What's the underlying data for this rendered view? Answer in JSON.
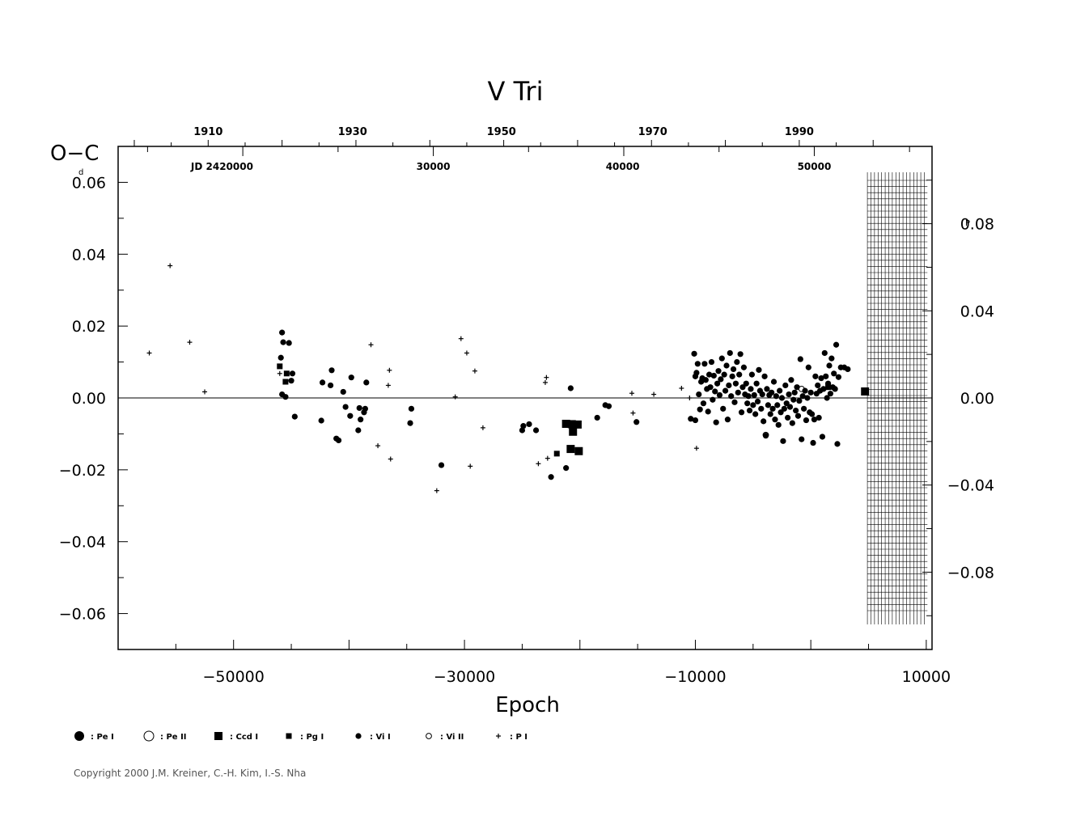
{
  "chart_data": {
    "type": "scatter",
    "title": "V  Tri",
    "xlabel": "Epoch",
    "ylabel": "O−C",
    "ylabel_unit": "d",
    "right_axis_unit": "P",
    "xlim": [
      -60000,
      10500
    ],
    "ylim": [
      -0.07,
      0.07
    ],
    "right_ylim": [
      -0.1155,
      0.1155
    ],
    "x_ticks": [
      {
        "value": -50000,
        "label": "−50000"
      },
      {
        "value": -30000,
        "label": "−30000"
      },
      {
        "value": -10000,
        "label": "−10000"
      },
      {
        "value": 10000,
        "label": "10000"
      }
    ],
    "y_ticks": [
      {
        "value": 0.06,
        "label": "0.06"
      },
      {
        "value": 0.04,
        "label": "0.04"
      },
      {
        "value": 0.02,
        "label": "0.02"
      },
      {
        "value": 0.0,
        "label": "0.00"
      },
      {
        "value": -0.02,
        "label": "−0.02"
      },
      {
        "value": -0.04,
        "label": "−0.04"
      },
      {
        "value": -0.06,
        "label": "−0.06"
      }
    ],
    "right_y_ticks": [
      {
        "value": 0.08,
        "label": "0.08"
      },
      {
        "value": 0.04,
        "label": "0.04"
      },
      {
        "value": 0.0,
        "label": "0.00"
      },
      {
        "value": -0.04,
        "label": "−0.04"
      },
      {
        "value": -0.08,
        "label": "−0.08"
      }
    ],
    "year_ticks": [
      {
        "epoch": -52200,
        "label": "1910"
      },
      {
        "epoch": -39700,
        "label": "1930"
      },
      {
        "epoch": -26800,
        "label": "1950"
      },
      {
        "epoch": -13700,
        "label": "1970"
      },
      {
        "epoch": -1000,
        "label": "1990"
      }
    ],
    "jd_ticks": [
      {
        "epoch": -51000,
        "label": "JD  2420000"
      },
      {
        "epoch": -32700,
        "label": "30000"
      },
      {
        "epoch": -16300,
        "label": "40000"
      },
      {
        "epoch": 300,
        "label": "50000"
      }
    ],
    "hatch_region": {
      "x_start": 4900,
      "x_end": 10100
    },
    "zero_line": true,
    "legend_position": "bottom",
    "legend": [
      {
        "symbol": "big-dot",
        "label": ": Pe I"
      },
      {
        "symbol": "big-circle",
        "label": ": Pe II"
      },
      {
        "symbol": "big-square",
        "label": ": Ccd I"
      },
      {
        "symbol": "small-square",
        "label": ": Pg I"
      },
      {
        "symbol": "small-dot",
        "label": ": Vi I"
      },
      {
        "symbol": "small-circle",
        "label": ": Vi II"
      },
      {
        "symbol": "plus",
        "label": ": P I"
      }
    ],
    "series": [
      {
        "name": "P I",
        "symbol": "plus",
        "points": [
          [
            -57300,
            0.0125
          ],
          [
            -55500,
            0.0368
          ],
          [
            -53800,
            0.0155
          ],
          [
            -52500,
            0.0017
          ],
          [
            -46000,
            0.0068
          ],
          [
            -38100,
            0.0148
          ],
          [
            -37500,
            -0.0133
          ],
          [
            -36600,
            0.0035
          ],
          [
            -36500,
            0.0077
          ],
          [
            -36400,
            -0.017
          ],
          [
            -32400,
            -0.0258
          ],
          [
            -30800,
            0.0003
          ],
          [
            -30300,
            0.0165
          ],
          [
            -29800,
            0.0125
          ],
          [
            -29500,
            -0.019
          ],
          [
            -29100,
            0.0075
          ],
          [
            -28400,
            -0.0083
          ],
          [
            -23600,
            -0.0183
          ],
          [
            -23000,
            0.0043
          ],
          [
            -22900,
            0.0057
          ],
          [
            -22800,
            -0.0168
          ],
          [
            -15500,
            0.0013
          ],
          [
            -15400,
            -0.0042
          ],
          [
            -13600,
            0.001
          ],
          [
            -11200,
            0.0027
          ],
          [
            -10500,
            0.0
          ],
          [
            -9900,
            -0.014
          ]
        ]
      },
      {
        "name": "Ccd I",
        "symbol": "big-square",
        "points": [
          [
            -21200,
            -0.0072
          ],
          [
            -20800,
            -0.0142
          ],
          [
            -20700,
            -0.0073
          ],
          [
            -20600,
            -0.0094
          ],
          [
            -20200,
            -0.0074
          ],
          [
            -20100,
            -0.0148
          ],
          [
            4700,
            0.0018
          ]
        ]
      },
      {
        "name": "Pg I",
        "symbol": "small-square",
        "points": [
          [
            -46000,
            0.0088
          ],
          [
            -45500,
            0.0045
          ],
          [
            -45400,
            0.0068
          ],
          [
            -22000,
            -0.0155
          ],
          [
            1500,
            0.003
          ]
        ]
      },
      {
        "name": "Vi II",
        "symbol": "small-circle",
        "points": [
          [
            -3900,
            -0.0103
          ],
          [
            -800,
            0.0025
          ]
        ]
      },
      {
        "name": "Vi I",
        "symbol": "small-dot",
        "points": [
          [
            -45800,
            0.0182
          ],
          [
            -45700,
            0.0155
          ],
          [
            -45900,
            0.0112
          ],
          [
            -45800,
            0.001
          ],
          [
            -45500,
            0.0003
          ],
          [
            -45200,
            0.0153
          ],
          [
            -45000,
            0.0048
          ],
          [
            -44900,
            0.0068
          ],
          [
            -44700,
            -0.0052
          ],
          [
            -42400,
            -0.0063
          ],
          [
            -42300,
            0.0043
          ],
          [
            -41600,
            0.0035
          ],
          [
            -41500,
            0.0077
          ],
          [
            -41100,
            -0.0113
          ],
          [
            -40900,
            -0.0118
          ],
          [
            -40500,
            0.0017
          ],
          [
            -40300,
            -0.0025
          ],
          [
            -39900,
            -0.005
          ],
          [
            -39800,
            0.0057
          ],
          [
            -39200,
            -0.009
          ],
          [
            -39100,
            -0.0028
          ],
          [
            -39000,
            -0.006
          ],
          [
            -38700,
            -0.004
          ],
          [
            -38600,
            -0.003
          ],
          [
            -38500,
            0.0043
          ],
          [
            -34700,
            -0.007
          ],
          [
            -34600,
            -0.003
          ],
          [
            -32000,
            -0.0187
          ],
          [
            -25000,
            -0.009
          ],
          [
            -24900,
            -0.0078
          ],
          [
            -24400,
            -0.0073
          ],
          [
            -23800,
            -0.009
          ],
          [
            -22500,
            -0.022
          ],
          [
            -21200,
            -0.0195
          ],
          [
            -20800,
            0.0027
          ],
          [
            -18500,
            -0.0055
          ],
          [
            -17800,
            -0.002
          ],
          [
            -17500,
            -0.0023
          ],
          [
            -15100,
            -0.0067
          ],
          [
            -10400,
            -0.0058
          ],
          [
            -10100,
            0.0123
          ],
          [
            -10000,
            0.006
          ],
          [
            -10000,
            -0.0062
          ],
          [
            -9900,
            0.007
          ],
          [
            -9800,
            0.0095
          ],
          [
            -9700,
            0.001
          ],
          [
            -9600,
            -0.0032
          ],
          [
            -9500,
            0.0045
          ],
          [
            -9400,
            0.0055
          ],
          [
            -9300,
            -0.0015
          ],
          [
            -9200,
            0.0095
          ],
          [
            -9100,
            0.005
          ],
          [
            -9000,
            0.0025
          ],
          [
            -8900,
            -0.0038
          ],
          [
            -8800,
            0.0065
          ],
          [
            -8700,
            0.003
          ],
          [
            -8600,
            0.01
          ],
          [
            -8500,
            -0.0005
          ],
          [
            -8400,
            0.0062
          ],
          [
            -8300,
            0.0018
          ],
          [
            -8200,
            -0.0068
          ],
          [
            -8100,
            0.004
          ],
          [
            -8000,
            0.0075
          ],
          [
            -7900,
            0.0008
          ],
          [
            -7800,
            0.0052
          ],
          [
            -7700,
            0.011
          ],
          [
            -7600,
            -0.003
          ],
          [
            -7500,
            0.0065
          ],
          [
            -7400,
            0.002
          ],
          [
            -7300,
            0.009
          ],
          [
            -7200,
            -0.006
          ],
          [
            -7100,
            0.0035
          ],
          [
            -7000,
            0.0125
          ],
          [
            -6900,
            0.0005
          ],
          [
            -6800,
            0.006
          ],
          [
            -6700,
            0.008
          ],
          [
            -6600,
            -0.0012
          ],
          [
            -6500,
            0.004
          ],
          [
            -6400,
            0.01
          ],
          [
            -6300,
            0.0015
          ],
          [
            -6200,
            0.0065
          ],
          [
            -6100,
            0.0122
          ],
          [
            -6000,
            -0.004
          ],
          [
            -5900,
            0.003
          ],
          [
            -5800,
            0.0085
          ],
          [
            -5700,
            0.001
          ],
          [
            -5600,
            0.004
          ],
          [
            -5500,
            -0.0015
          ],
          [
            -5400,
            0.0005
          ],
          [
            -5300,
            -0.0035
          ],
          [
            -5200,
            0.0025
          ],
          [
            -5100,
            0.0065
          ],
          [
            -5000,
            -0.002
          ],
          [
            -4900,
            0.0008
          ],
          [
            -4800,
            -0.0045
          ],
          [
            -4700,
            0.004
          ],
          [
            -4600,
            -0.001
          ],
          [
            -4500,
            0.0078
          ],
          [
            -4400,
            0.002
          ],
          [
            -4300,
            -0.003
          ],
          [
            -4200,
            0.001
          ],
          [
            -4100,
            -0.0065
          ],
          [
            -4000,
            0.006
          ],
          [
            -3900,
            -0.0105
          ],
          [
            -3800,
            0.0025
          ],
          [
            -3700,
            -0.002
          ],
          [
            -3600,
            0.0008
          ],
          [
            -3500,
            -0.0045
          ],
          [
            -3400,
            0.0015
          ],
          [
            -3300,
            -0.003
          ],
          [
            -3200,
            0.0045
          ],
          [
            -3100,
            -0.006
          ],
          [
            -3000,
            0.0005
          ],
          [
            -2900,
            -0.002
          ],
          [
            -2800,
            -0.0075
          ],
          [
            -2700,
            0.002
          ],
          [
            -2600,
            -0.004
          ],
          [
            -2500,
            0.0
          ],
          [
            -2400,
            -0.012
          ],
          [
            -2300,
            -0.003
          ],
          [
            -2200,
            0.0035
          ],
          [
            -2100,
            -0.0015
          ],
          [
            -2000,
            -0.0055
          ],
          [
            -1900,
            0.001
          ],
          [
            -1800,
            -0.0025
          ],
          [
            -1700,
            0.005
          ],
          [
            -1600,
            -0.007
          ],
          [
            -1500,
            -0.0005
          ],
          [
            -1400,
            0.0015
          ],
          [
            -1300,
            -0.0035
          ],
          [
            -1200,
            0.003
          ],
          [
            -1100,
            -0.005
          ],
          [
            -1000,
            -0.0008
          ],
          [
            -900,
            0.0108
          ],
          [
            -800,
            -0.0115
          ],
          [
            -700,
            0.0005
          ],
          [
            -600,
            -0.003
          ],
          [
            -500,
            0.002
          ],
          [
            -400,
            -0.0062
          ],
          [
            -300,
            0.0
          ],
          [
            -200,
            0.0085
          ],
          [
            -100,
            -0.004
          ],
          [
            0,
            0.0015
          ],
          [
            100,
            -0.0045
          ],
          [
            200,
            -0.0125
          ],
          [
            300,
            -0.006
          ],
          [
            400,
            0.006
          ],
          [
            500,
            0.0012
          ],
          [
            600,
            0.0035
          ],
          [
            700,
            -0.0055
          ],
          [
            800,
            0.002
          ],
          [
            900,
            0.0055
          ],
          [
            1000,
            -0.0108
          ],
          [
            1100,
            0.0025
          ],
          [
            1200,
            0.0125
          ],
          [
            1300,
            0.006
          ],
          [
            1400,
            0.0
          ],
          [
            1500,
            0.004
          ],
          [
            1600,
            0.009
          ],
          [
            1700,
            0.0012
          ],
          [
            1800,
            0.011
          ],
          [
            1900,
            0.003
          ],
          [
            2000,
            0.0068
          ],
          [
            2100,
            0.0025
          ],
          [
            2200,
            0.0148
          ],
          [
            2300,
            -0.0128
          ],
          [
            2400,
            0.0058
          ],
          [
            2600,
            0.0085
          ],
          [
            2900,
            0.0085
          ],
          [
            3200,
            0.008
          ]
        ]
      }
    ]
  },
  "copyright": "Copyright 2000 J.M. Kreiner, C.-H. Kim, I.-S. Nha"
}
